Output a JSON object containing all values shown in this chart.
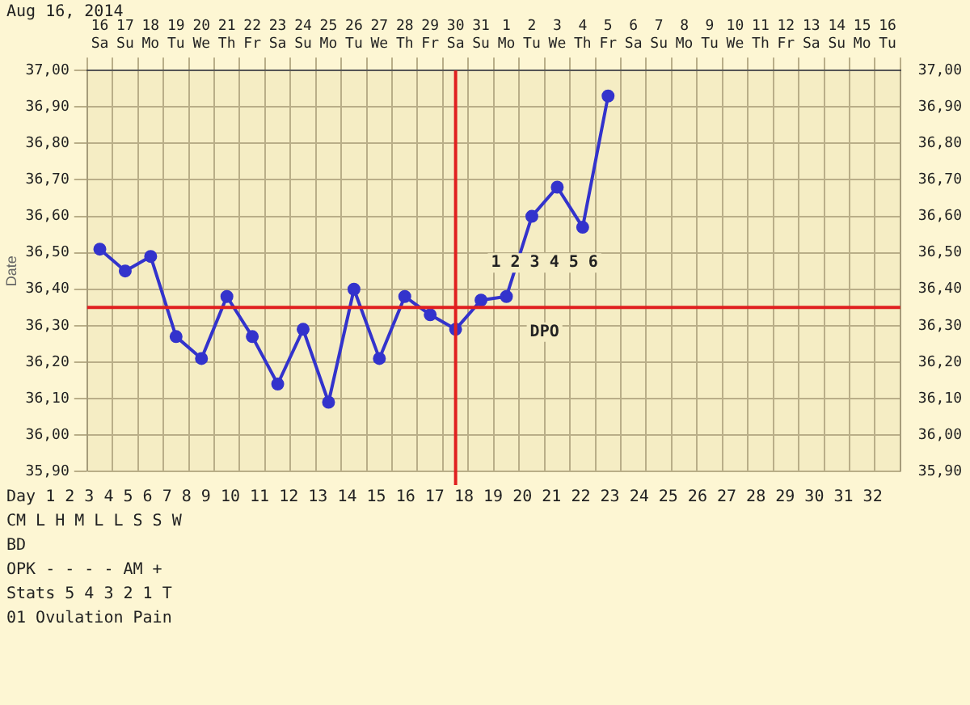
{
  "chart_data": {
    "type": "line",
    "ylabel": "Date",
    "categories": [
      "16 Sa",
      "17 Su",
      "18 Mo",
      "19 Tu",
      "20 We",
      "21 Th",
      "22 Fr",
      "23 Sa",
      "24 Su",
      "25 Mo",
      "26 Tu",
      "27 We",
      "28 Th",
      "29 Fr",
      "30 Sa",
      "31 Su",
      "1 Mo",
      "2 Tu",
      "3 We",
      "4 Th",
      "5 Fr",
      "6 Sa",
      "7 Su",
      "8 Mo",
      "9 Tu",
      "10 We",
      "11 Th",
      "12 Fr",
      "13 Sa",
      "14 Su",
      "15 Mo",
      "16 Tu"
    ],
    "series": [
      {
        "color": "#3333cc",
        "values": [
          36.51,
          36.45,
          36.49,
          36.27,
          36.21,
          36.38,
          36.27,
          36.14,
          36.29,
          36.09,
          36.4,
          36.21,
          36.38,
          36.33,
          36.29,
          36.37,
          36.38,
          36.6,
          36.68,
          36.57,
          36.93,
          null,
          null,
          null,
          null,
          null,
          null,
          null,
          null,
          null,
          null,
          null
        ]
      }
    ],
    "ylim": [
      35.9,
      37.0
    ],
    "yticks": [
      {
        "value": 35.9,
        "label": "35,90"
      },
      {
        "value": 36.0,
        "label": "36,00"
      },
      {
        "value": 36.1,
        "label": "36,10"
      },
      {
        "value": 36.2,
        "label": "36,20"
      },
      {
        "value": 36.3,
        "label": "36,30"
      },
      {
        "value": 36.4,
        "label": "36,40"
      },
      {
        "value": 36.5,
        "label": "36,50"
      },
      {
        "value": 36.6,
        "label": "36,60"
      },
      {
        "value": 36.7,
        "label": "36,70"
      },
      {
        "value": 36.8,
        "label": "36,80"
      },
      {
        "value": 36.9,
        "label": "36,90"
      },
      {
        "value": 37.0,
        "label": "37,00"
      }
    ],
    "y2lim": [
      35.9,
      37.0
    ],
    "y2ticks": [
      {
        "value": 35.9,
        "label": "35,90"
      },
      {
        "value": 36.0,
        "label": "36,00"
      },
      {
        "value": 36.1,
        "label": "36,10"
      },
      {
        "value": 36.2,
        "label": "36,20"
      },
      {
        "value": 36.3,
        "label": "36,30"
      },
      {
        "value": 36.4,
        "label": "36,40"
      },
      {
        "value": 36.5,
        "label": "36,50"
      },
      {
        "value": 36.6,
        "label": "36,60"
      },
      {
        "value": 36.7,
        "label": "36,70"
      },
      {
        "value": 36.8,
        "label": "36,80"
      },
      {
        "value": 36.9,
        "label": "36,90"
      },
      {
        "value": 37.0,
        "label": "37,00"
      }
    ],
    "ref_lines": [
      {
        "axis": "x",
        "value": "30 Sa",
        "color": "#e02020"
      },
      {
        "axis": "y",
        "value": 36.35,
        "color": "#e02020"
      }
    ],
    "grid": true,
    "marker": "circle",
    "line_style": "solid",
    "annotations": [
      "Aug 16, 2014",
      "1 2 3 4 5 6",
      "DPO",
      "Day 1 2 3 4 5 6 7 8 9 10 11 12 13 14 15 16 17 18 19 20 21 22 23 24 25 26 27 28 29 30 31 32",
      "CM L H M L L S S W",
      "BD",
      "OPK - - - - AM +",
      "Stats 5 4 3 2 1 T",
      "01 Ovulation Pain"
    ]
  }
}
